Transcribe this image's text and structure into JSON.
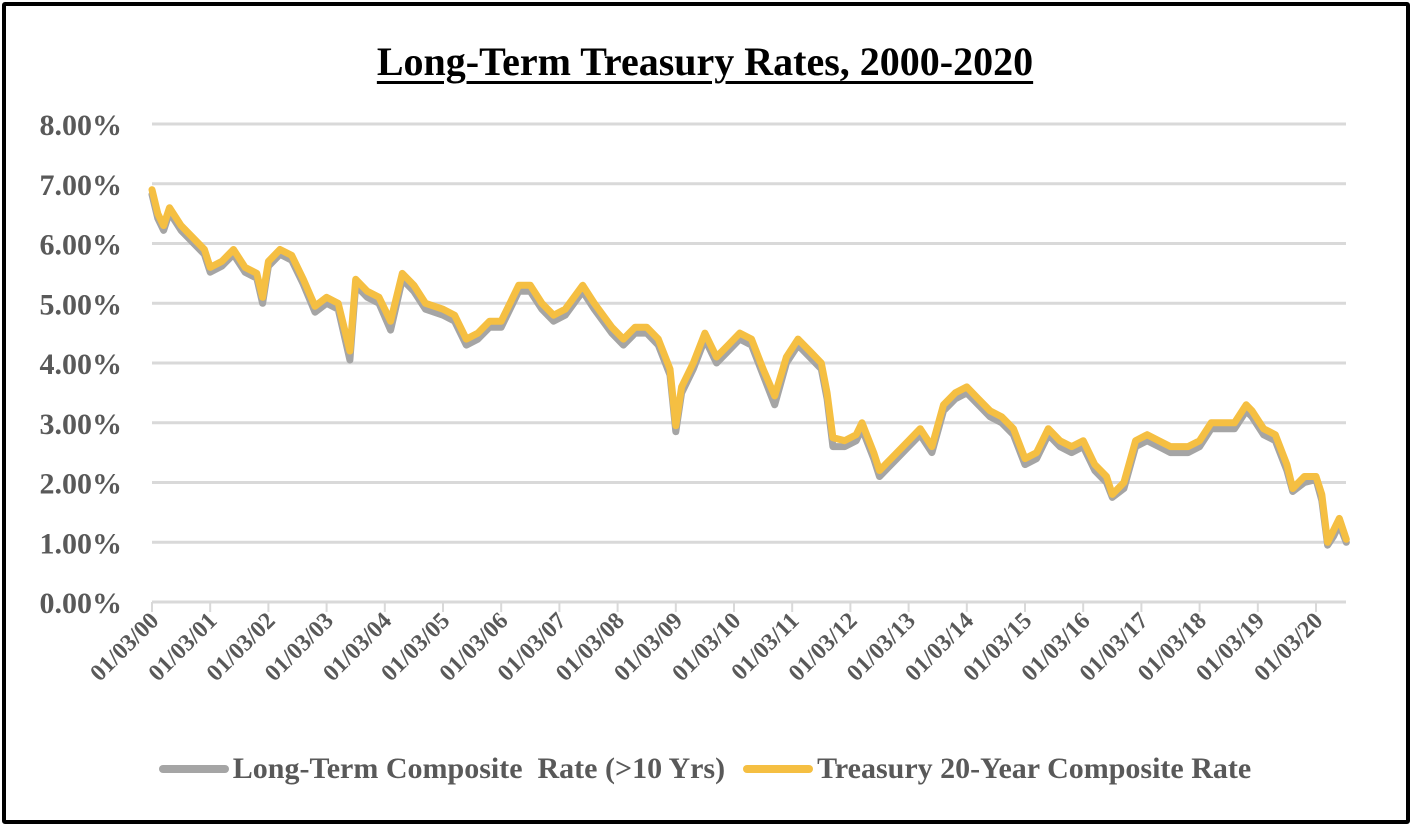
{
  "chart_data": {
    "type": "line",
    "title": "Long-Term Treasury Rates, 2000-2020",
    "xlabel": "",
    "ylabel": "",
    "ylim": [
      0,
      8
    ],
    "xlim": [
      2000.0,
      2020.52
    ],
    "y_ticks": [
      "0.00%",
      "1.00%",
      "2.00%",
      "3.00%",
      "4.00%",
      "5.00%",
      "6.00%",
      "7.00%",
      "8.00%"
    ],
    "x_ticks": [
      "01/03/00",
      "01/03/01",
      "01/03/02",
      "01/03/03",
      "01/03/04",
      "01/03/05",
      "01/03/06",
      "01/03/07",
      "01/03/08",
      "01/03/09",
      "01/03/10",
      "01/03/11",
      "01/03/12",
      "01/03/13",
      "01/03/14",
      "01/03/15",
      "01/03/16",
      "01/03/17",
      "01/03/18",
      "01/03/19",
      "01/03/20"
    ],
    "grid": true,
    "legend_position": "bottom",
    "x": [
      2000.0,
      2000.1,
      2000.2,
      2000.3,
      2000.5,
      2000.7,
      2000.9,
      2001.0,
      2001.2,
      2001.4,
      2001.6,
      2001.8,
      2001.9,
      2002.0,
      2002.2,
      2002.4,
      2002.6,
      2002.8,
      2003.0,
      2003.2,
      2003.4,
      2003.5,
      2003.7,
      2003.9,
      2004.1,
      2004.3,
      2004.5,
      2004.7,
      2005.0,
      2005.2,
      2005.4,
      2005.6,
      2005.8,
      2006.0,
      2006.3,
      2006.5,
      2006.7,
      2006.9,
      2007.1,
      2007.4,
      2007.6,
      2007.9,
      2008.1,
      2008.3,
      2008.5,
      2008.7,
      2008.9,
      2009.0,
      2009.1,
      2009.3,
      2009.5,
      2009.7,
      2009.9,
      2010.1,
      2010.3,
      2010.5,
      2010.7,
      2010.9,
      2011.1,
      2011.3,
      2011.5,
      2011.6,
      2011.7,
      2011.9,
      2012.1,
      2012.2,
      2012.4,
      2012.5,
      2012.8,
      2013.0,
      2013.2,
      2013.4,
      2013.6,
      2013.8,
      2014.0,
      2014.2,
      2014.4,
      2014.6,
      2014.8,
      2015.0,
      2015.2,
      2015.4,
      2015.6,
      2015.8,
      2016.0,
      2016.2,
      2016.4,
      2016.5,
      2016.7,
      2016.9,
      2017.1,
      2017.3,
      2017.5,
      2017.8,
      2018.0,
      2018.2,
      2018.4,
      2018.6,
      2018.8,
      2018.9,
      2019.1,
      2019.3,
      2019.5,
      2019.6,
      2019.8,
      2020.0,
      2020.1,
      2020.2,
      2020.3,
      2020.4,
      2020.52
    ],
    "series": [
      {
        "name": "Long-Term Composite  Rate (>10 Yrs)",
        "color": "#A5A5A5",
        "values": [
          6.82,
          6.42,
          6.22,
          6.52,
          6.22,
          6.02,
          5.82,
          5.52,
          5.62,
          5.82,
          5.52,
          5.42,
          5.0,
          5.62,
          5.82,
          5.72,
          5.32,
          4.85,
          5.0,
          4.9,
          4.05,
          5.3,
          5.1,
          5.0,
          4.55,
          5.4,
          5.2,
          4.9,
          4.8,
          4.7,
          4.3,
          4.4,
          4.6,
          4.6,
          5.2,
          5.2,
          4.9,
          4.7,
          4.8,
          5.2,
          4.9,
          4.5,
          4.3,
          4.5,
          4.5,
          4.3,
          3.8,
          2.85,
          3.5,
          3.9,
          4.4,
          4.0,
          4.2,
          4.4,
          4.3,
          3.8,
          3.3,
          4.0,
          4.3,
          4.1,
          3.9,
          3.4,
          2.6,
          2.6,
          2.7,
          2.9,
          2.4,
          2.1,
          2.4,
          2.6,
          2.8,
          2.5,
          3.2,
          3.4,
          3.5,
          3.3,
          3.1,
          3.0,
          2.8,
          2.3,
          2.4,
          2.8,
          2.6,
          2.5,
          2.6,
          2.2,
          2.0,
          1.75,
          1.9,
          2.6,
          2.7,
          2.6,
          2.5,
          2.5,
          2.6,
          2.9,
          2.9,
          2.9,
          3.2,
          3.1,
          2.8,
          2.7,
          2.2,
          1.85,
          2.0,
          2.05,
          1.7,
          0.95,
          1.1,
          1.3,
          1.0
        ]
      },
      {
        "name": "Treasury 20-Year Composite Rate",
        "color": "#F5BF42",
        "values": [
          6.9,
          6.5,
          6.3,
          6.6,
          6.3,
          6.1,
          5.9,
          5.6,
          5.7,
          5.9,
          5.6,
          5.5,
          5.1,
          5.7,
          5.9,
          5.8,
          5.4,
          4.95,
          5.1,
          5.0,
          4.2,
          5.4,
          5.2,
          5.1,
          4.7,
          5.5,
          5.3,
          5.0,
          4.9,
          4.8,
          4.4,
          4.5,
          4.7,
          4.7,
          5.3,
          5.3,
          5.0,
          4.8,
          4.9,
          5.3,
          5.0,
          4.6,
          4.4,
          4.6,
          4.6,
          4.4,
          3.9,
          2.95,
          3.6,
          4.0,
          4.5,
          4.1,
          4.3,
          4.5,
          4.4,
          3.9,
          3.45,
          4.1,
          4.4,
          4.2,
          4.0,
          3.5,
          2.75,
          2.7,
          2.8,
          3.0,
          2.5,
          2.2,
          2.5,
          2.7,
          2.9,
          2.6,
          3.3,
          3.5,
          3.6,
          3.4,
          3.2,
          3.1,
          2.9,
          2.4,
          2.5,
          2.9,
          2.7,
          2.6,
          2.7,
          2.3,
          2.1,
          1.8,
          2.0,
          2.7,
          2.8,
          2.7,
          2.6,
          2.6,
          2.7,
          3.0,
          3.0,
          3.0,
          3.3,
          3.2,
          2.9,
          2.8,
          2.3,
          1.9,
          2.1,
          2.1,
          1.8,
          1.0,
          1.2,
          1.4,
          1.05
        ]
      }
    ]
  }
}
